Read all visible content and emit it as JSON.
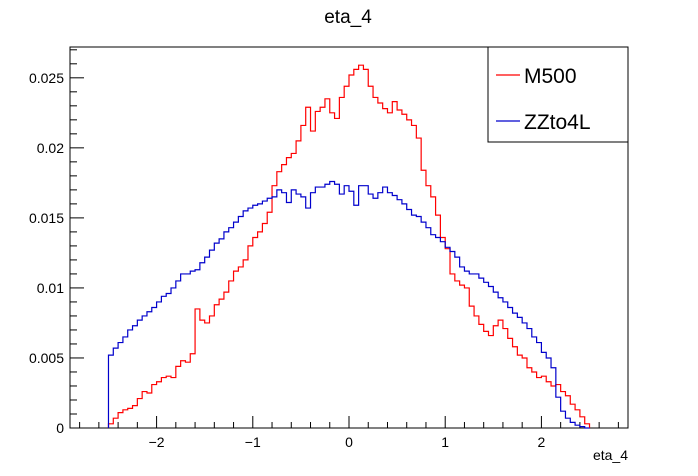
{
  "chart_data": {
    "type": "line",
    "style": "step-histogram",
    "title": "eta_4",
    "xlabel": "eta_4",
    "ylabel": "",
    "xlim": [
      -2.9,
      2.9
    ],
    "ylim": [
      0,
      0.0272
    ],
    "xticks": [
      -2,
      -1,
      0,
      1,
      2
    ],
    "xtick_labels": [
      "−2",
      "−1",
      "0",
      "1",
      "2"
    ],
    "yticks": [
      0,
      0.005,
      0.01,
      0.015,
      0.02,
      0.025
    ],
    "ytick_labels": [
      "0",
      "0.005",
      "0.01",
      "0.015",
      "0.02",
      "0.025"
    ],
    "grid": false,
    "legend_position": "top-right",
    "bin_edges_start": -2.5,
    "bin_width": 0.05,
    "series": [
      {
        "name": "M500",
        "color": "#ff0000",
        "values": [
          0.0003,
          0.0007,
          0.0011,
          0.0013,
          0.0014,
          0.0016,
          0.0021,
          0.0026,
          0.0025,
          0.0031,
          0.0033,
          0.0036,
          0.0037,
          0.0036,
          0.0044,
          0.0048,
          0.0047,
          0.0053,
          0.0085,
          0.0077,
          0.0075,
          0.008,
          0.0088,
          0.0092,
          0.0097,
          0.0105,
          0.0112,
          0.0115,
          0.012,
          0.013,
          0.0136,
          0.014,
          0.0146,
          0.0154,
          0.0173,
          0.0183,
          0.0188,
          0.0193,
          0.0196,
          0.0205,
          0.0216,
          0.0229,
          0.0212,
          0.0226,
          0.0229,
          0.0235,
          0.0225,
          0.0221,
          0.0236,
          0.0244,
          0.0252,
          0.0256,
          0.0259,
          0.0256,
          0.0244,
          0.0236,
          0.0232,
          0.0228,
          0.0225,
          0.0233,
          0.0227,
          0.0224,
          0.022,
          0.0216,
          0.0207,
          0.0184,
          0.0173,
          0.0165,
          0.0152,
          0.0136,
          0.0128,
          0.011,
          0.0105,
          0.0102,
          0.01,
          0.0087,
          0.008,
          0.0074,
          0.0069,
          0.0066,
          0.0073,
          0.0077,
          0.0071,
          0.0064,
          0.0058,
          0.0052,
          0.005,
          0.0043,
          0.004,
          0.0036,
          0.0037,
          0.0033,
          0.003,
          0.0031,
          0.0026,
          0.0023,
          0.0017,
          0.0013,
          0.0008,
          0.0003
        ]
      },
      {
        "name": "ZZto4L",
        "color": "#0000cc",
        "values": [
          0.0052,
          0.0057,
          0.0061,
          0.0065,
          0.007,
          0.0073,
          0.0077,
          0.008,
          0.0083,
          0.0086,
          0.009,
          0.0094,
          0.0096,
          0.01,
          0.0105,
          0.011,
          0.011,
          0.0112,
          0.0113,
          0.0118,
          0.0122,
          0.0127,
          0.0132,
          0.0135,
          0.014,
          0.0143,
          0.0147,
          0.0151,
          0.0155,
          0.0157,
          0.0159,
          0.016,
          0.0162,
          0.0164,
          0.0165,
          0.017,
          0.0168,
          0.0161,
          0.017,
          0.0167,
          0.0165,
          0.0157,
          0.0168,
          0.0172,
          0.0172,
          0.0174,
          0.0176,
          0.0174,
          0.0167,
          0.0173,
          0.0169,
          0.0159,
          0.0173,
          0.0173,
          0.0167,
          0.0164,
          0.0168,
          0.0172,
          0.0168,
          0.0166,
          0.0163,
          0.016,
          0.0156,
          0.0152,
          0.0151,
          0.0147,
          0.0143,
          0.0138,
          0.0136,
          0.0133,
          0.0129,
          0.0126,
          0.0122,
          0.0115,
          0.0112,
          0.011,
          0.011,
          0.0107,
          0.0104,
          0.0101,
          0.0097,
          0.0093,
          0.009,
          0.0086,
          0.0082,
          0.0079,
          0.0075,
          0.0071,
          0.0065,
          0.0061,
          0.0054,
          0.005,
          0.0043,
          0.0022,
          0.0012,
          0.0007,
          0.0004,
          0.0002,
          0.0001,
          0.0
        ]
      }
    ]
  }
}
